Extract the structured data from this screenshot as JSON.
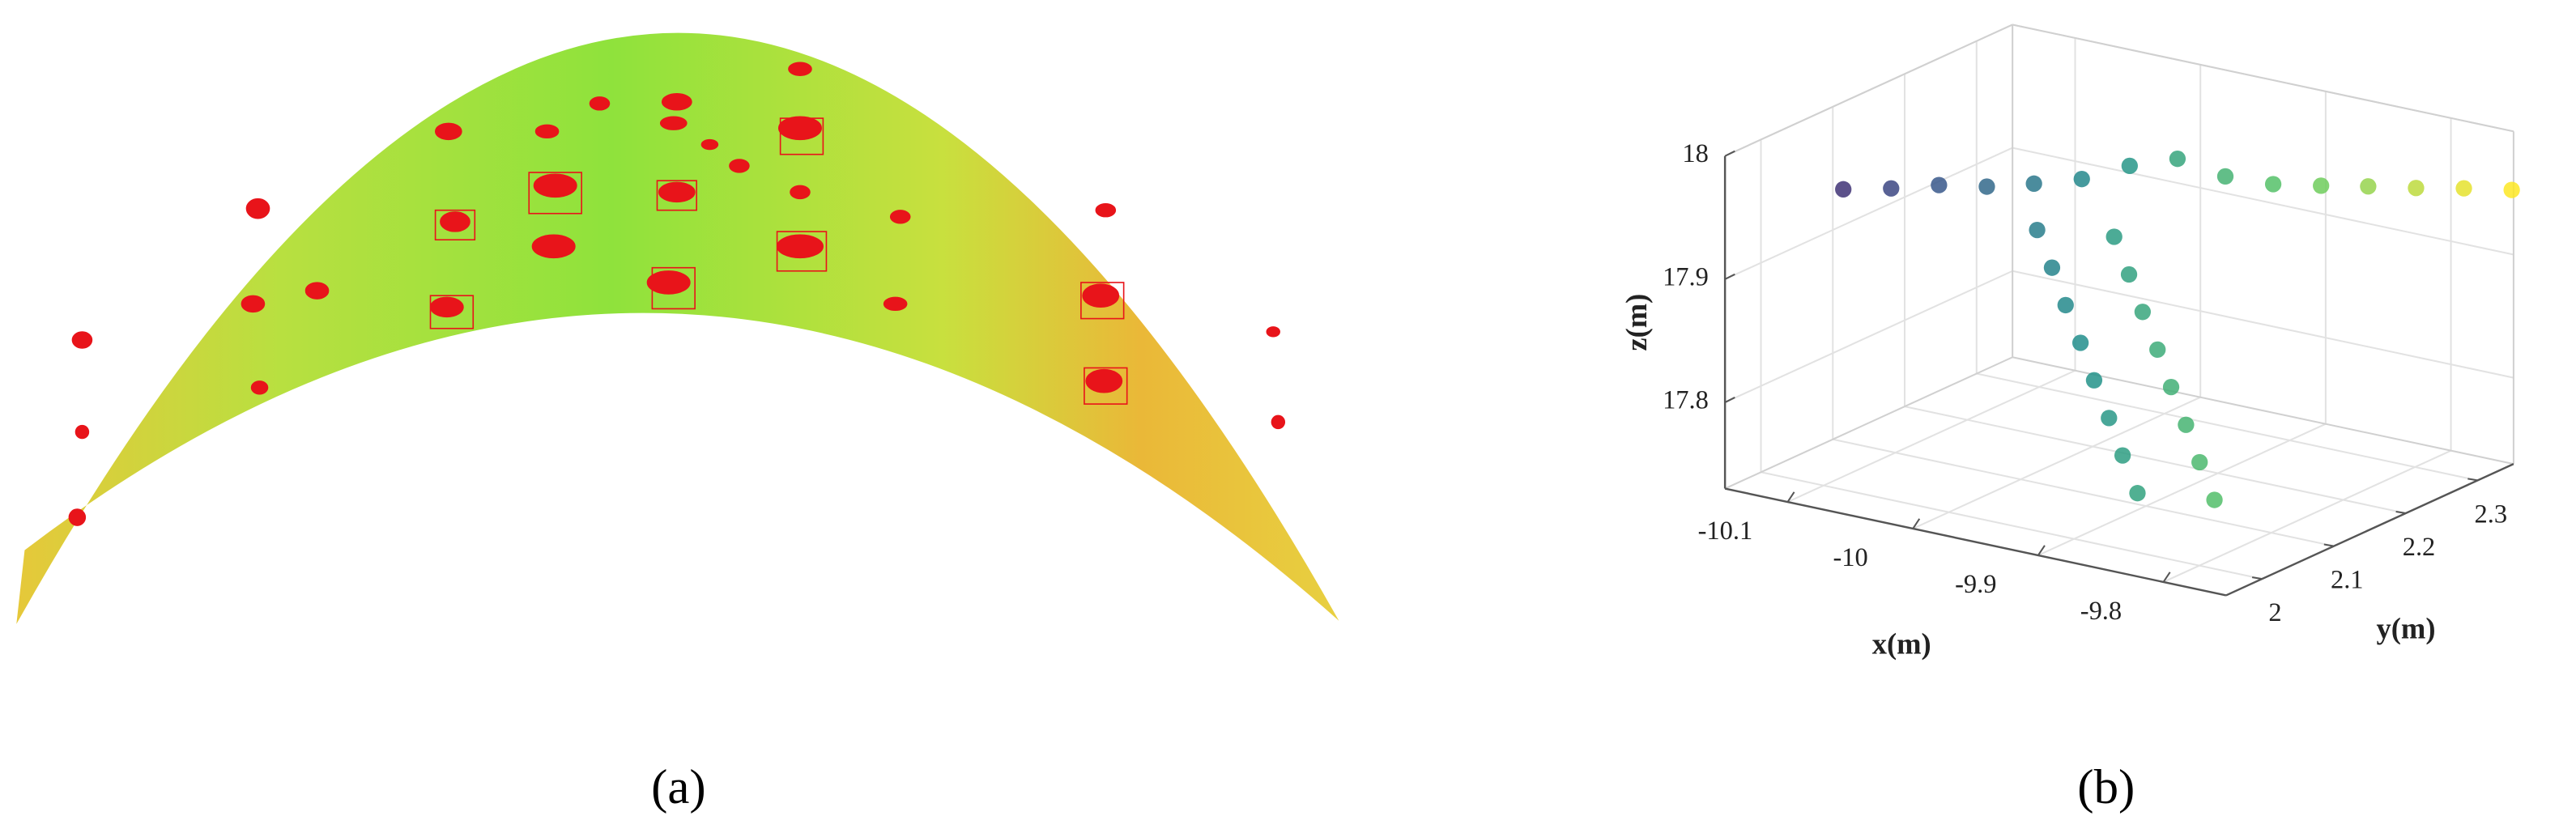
{
  "panel_labels": [
    "(a)",
    "(b)"
  ],
  "chart_data": {
    "type": "scatter3d",
    "xlabel": "x(m)",
    "ylabel": "y(m)",
    "zlabel": "z(m)",
    "xlim": [
      -10.15,
      -9.75
    ],
    "ylim": [
      1.95,
      2.35
    ],
    "zlim": [
      17.73,
      18
    ],
    "xticks": [
      -10.1,
      -10,
      -9.9,
      -9.8
    ],
    "yticks": [
      2,
      2.1,
      2.2,
      2.3
    ],
    "zticks": [
      17.8,
      17.9,
      18
    ],
    "grid": true,
    "colormap": "viridis",
    "series": [
      {
        "x": [
          -10.09,
          -10.065,
          -10.04,
          -10.015,
          -9.99,
          -9.965,
          -9.94,
          -9.915,
          -9.89,
          -9.865,
          -9.84,
          -9.815,
          -9.79,
          -9.765,
          -9.74
        ],
        "y": [
          2.01,
          2.033,
          2.056,
          2.079,
          2.101,
          2.124,
          2.147,
          2.17,
          2.193,
          2.216,
          2.239,
          2.261,
          2.284,
          2.307,
          2.33
        ],
        "z": [
          17.97,
          17.97,
          17.972,
          17.97,
          17.972,
          17.975,
          17.985,
          17.99,
          17.975,
          17.968,
          17.966,
          17.965,
          17.963,
          17.962,
          17.96
        ]
      },
      {
        "x": [
          -9.98,
          -9.971,
          -9.963,
          -9.954,
          -9.946,
          -9.937,
          -9.929,
          -9.92,
          -9.93,
          -9.921,
          -9.913,
          -9.904,
          -9.896,
          -9.887,
          -9.879,
          -9.87
        ],
        "y": [
          2.088,
          2.093,
          2.098,
          2.103,
          2.108,
          2.113,
          2.118,
          2.123,
          2.108,
          2.113,
          2.118,
          2.123,
          2.128,
          2.133,
          2.138,
          2.143
        ],
        "z": [
          17.94,
          17.91,
          17.88,
          17.85,
          17.82,
          17.79,
          17.76,
          17.73,
          17.94,
          17.91,
          17.88,
          17.85,
          17.82,
          17.79,
          17.76,
          17.73
        ]
      }
    ]
  }
}
